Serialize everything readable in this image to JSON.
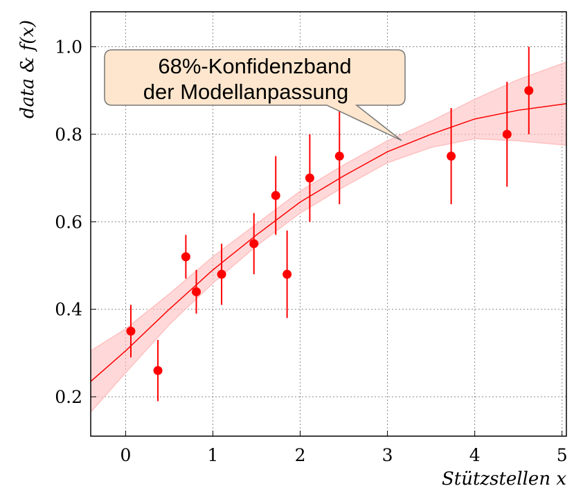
{
  "chart_data": {
    "type": "scatter",
    "xlabel": "Stützstellen x",
    "ylabel": "data & f(x)",
    "xlim": [
      -0.4,
      5.05
    ],
    "ylim": [
      0.11,
      1.08
    ],
    "xticks": [
      0,
      1,
      2,
      3,
      4,
      5
    ],
    "yticks": [
      0.2,
      0.4,
      0.6,
      0.8,
      {
        "value": 1,
        "label": "1.0"
      }
    ],
    "grid": true,
    "annotation": [
      "68%-Konfidenzband",
      "der Modellanpassung"
    ],
    "series": [
      {
        "color": "#ff0000",
        "x": [
          0.06,
          0.37,
          0.69,
          0.81,
          1.1,
          1.47,
          1.72,
          1.85,
          2.11,
          2.45,
          3.73,
          4.37,
          4.62
        ],
        "values": [
          0.35,
          0.26,
          0.52,
          0.44,
          0.48,
          0.55,
          0.66,
          0.48,
          0.7,
          0.75,
          0.75,
          0.8,
          0.9
        ],
        "errors": [
          0.06,
          0.07,
          0.05,
          0.05,
          0.07,
          0.07,
          0.09,
          0.1,
          0.1,
          0.11,
          0.11,
          0.12,
          0.1
        ]
      }
    ],
    "fit": {
      "color": "#ff0000",
      "band_color": "#ffc0c0",
      "x": [
        -0.4,
        0,
        0.5,
        1,
        1.5,
        2,
        2.5,
        3,
        3.5,
        4,
        4.5,
        5.05
      ],
      "values": [
        0.235,
        0.305,
        0.4,
        0.49,
        0.57,
        0.645,
        0.705,
        0.76,
        0.8,
        0.835,
        0.855,
        0.87
      ],
      "lower": [
        0.165,
        0.255,
        0.365,
        0.46,
        0.545,
        0.62,
        0.68,
        0.735,
        0.77,
        0.79,
        0.785,
        0.775
      ],
      "upper": [
        0.305,
        0.355,
        0.435,
        0.52,
        0.595,
        0.67,
        0.73,
        0.785,
        0.83,
        0.88,
        0.925,
        0.965
      ]
    }
  }
}
